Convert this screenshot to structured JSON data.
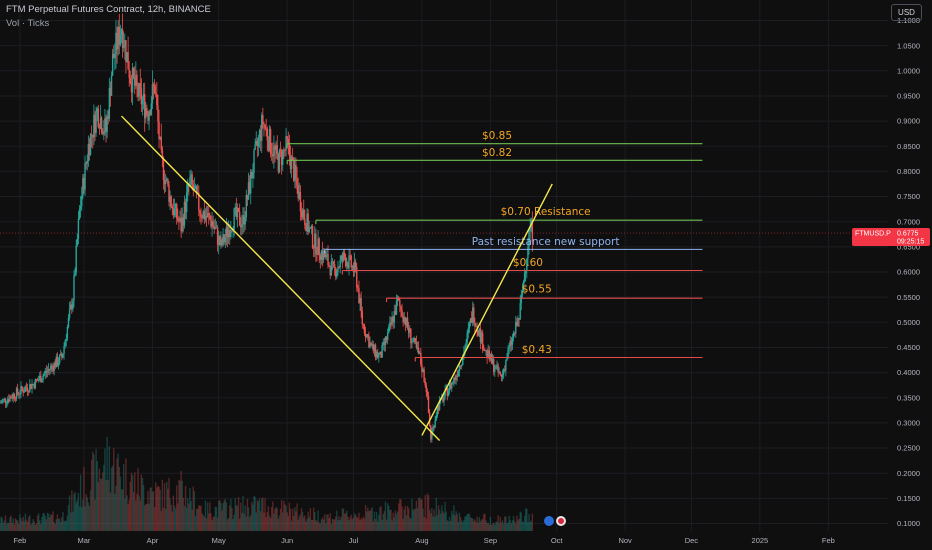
{
  "header": {
    "title": "FTM Perpetual Futures Contract, 12h, BINANCE",
    "indicator": "Vol · Ticks",
    "currency_button": "USD"
  },
  "price_tag": {
    "symbol": "FTMUSD.P",
    "price": "0.6775",
    "countdown": "09:25:15"
  },
  "colors": {
    "background": "#0f0f10",
    "candle_up": "#26a69a",
    "candle_down": "#ef5350",
    "trendline": "#f5e94b",
    "support_green": "#6fbf4f",
    "resistance_red": "#e54b4b",
    "support_blue": "#8fb4f0",
    "label_orange": "#f5a623",
    "price_tag": "#f23645"
  },
  "chart_data": {
    "type": "candlestick",
    "symbol": "FTMUSD.P",
    "interval": "12h",
    "exchange": "BINANCE",
    "y_ticks": [
      0.1,
      0.15,
      0.2,
      0.25,
      0.3,
      0.35,
      0.4,
      0.45,
      0.5,
      0.55,
      0.6,
      0.65,
      0.7,
      0.75,
      0.8,
      0.85,
      0.9,
      0.95,
      1.0,
      1.05,
      1.1
    ],
    "y_tick_labels": [
      "0.1000",
      "0.1500",
      "0.2000",
      "0.2500",
      "0.3000",
      "0.3500",
      "0.4000",
      "0.4500",
      "0.5000",
      "0.5500",
      "0.6000",
      "0.6500",
      "0.7000",
      "0.7500",
      "0.8000",
      "0.8500",
      "0.9000",
      "0.9500",
      "1.0000",
      "1.0500",
      "1.1000"
    ],
    "ylim": [
      0.09,
      1.13
    ],
    "x_ticks": [
      {
        "label": "Feb",
        "date": "2024-02-01"
      },
      {
        "label": "Mar",
        "date": "2024-03-01"
      },
      {
        "label": "Apr",
        "date": "2024-04-01"
      },
      {
        "label": "May",
        "date": "2024-05-01"
      },
      {
        "label": "Jun",
        "date": "2024-06-01"
      },
      {
        "label": "Jul",
        "date": "2024-07-01"
      },
      {
        "label": "Aug",
        "date": "2024-08-01"
      },
      {
        "label": "Sep",
        "date": "2024-09-01"
      },
      {
        "label": "Oct",
        "date": "2024-10-01"
      },
      {
        "label": "Nov",
        "date": "2024-11-01"
      },
      {
        "label": "Dec",
        "date": "2024-12-01"
      },
      {
        "label": "2025",
        "date": "2025-01-01"
      },
      {
        "label": "Feb",
        "date": "2025-02-01"
      }
    ],
    "xlim": [
      "2024-01-23",
      "2025-02-28"
    ],
    "price_path": [
      [
        "2024-01-23",
        0.34
      ],
      [
        "2024-01-31",
        0.36
      ],
      [
        "2024-02-08",
        0.38
      ],
      [
        "2024-02-15",
        0.41
      ],
      [
        "2024-02-20",
        0.43
      ],
      [
        "2024-02-25",
        0.55
      ],
      [
        "2024-02-28",
        0.72
      ],
      [
        "2024-03-03",
        0.85
      ],
      [
        "2024-03-07",
        0.92
      ],
      [
        "2024-03-11",
        0.88
      ],
      [
        "2024-03-14",
        1.02
      ],
      [
        "2024-03-18",
        1.09
      ],
      [
        "2024-03-22",
        0.99
      ],
      [
        "2024-03-26",
        0.95
      ],
      [
        "2024-03-30",
        0.92
      ],
      [
        "2024-04-02",
        0.97
      ],
      [
        "2024-04-05",
        0.82
      ],
      [
        "2024-04-10",
        0.73
      ],
      [
        "2024-04-14",
        0.69
      ],
      [
        "2024-04-18",
        0.78
      ],
      [
        "2024-04-23",
        0.72
      ],
      [
        "2024-04-28",
        0.7
      ],
      [
        "2024-05-02",
        0.65
      ],
      [
        "2024-05-08",
        0.71
      ],
      [
        "2024-05-12",
        0.7
      ],
      [
        "2024-05-17",
        0.82
      ],
      [
        "2024-05-21",
        0.9
      ],
      [
        "2024-05-24",
        0.86
      ],
      [
        "2024-05-28",
        0.82
      ],
      [
        "2024-06-01",
        0.85
      ],
      [
        "2024-06-04",
        0.8
      ],
      [
        "2024-06-08",
        0.72
      ],
      [
        "2024-06-13",
        0.66
      ],
      [
        "2024-06-18",
        0.63
      ],
      [
        "2024-06-22",
        0.6
      ],
      [
        "2024-06-27",
        0.63
      ],
      [
        "2024-07-02",
        0.6
      ],
      [
        "2024-07-05",
        0.5
      ],
      [
        "2024-07-09",
        0.45
      ],
      [
        "2024-07-13",
        0.43
      ],
      [
        "2024-07-17",
        0.48
      ],
      [
        "2024-07-21",
        0.54
      ],
      [
        "2024-07-24",
        0.51
      ],
      [
        "2024-07-27",
        0.47
      ],
      [
        "2024-07-31",
        0.43
      ],
      [
        "2024-08-03",
        0.37
      ],
      [
        "2024-08-05",
        0.27
      ],
      [
        "2024-08-08",
        0.33
      ],
      [
        "2024-08-12",
        0.36
      ],
      [
        "2024-08-16",
        0.39
      ],
      [
        "2024-08-20",
        0.44
      ],
      [
        "2024-08-24",
        0.52
      ],
      [
        "2024-08-27",
        0.48
      ],
      [
        "2024-08-30",
        0.44
      ],
      [
        "2024-09-03",
        0.41
      ],
      [
        "2024-09-06",
        0.39
      ],
      [
        "2024-09-09",
        0.44
      ],
      [
        "2024-09-12",
        0.48
      ],
      [
        "2024-09-14",
        0.51
      ],
      [
        "2024-09-16",
        0.58
      ],
      [
        "2024-09-18",
        0.66
      ],
      [
        "2024-09-19",
        0.69
      ],
      [
        "2024-09-20",
        0.6775
      ]
    ],
    "volume": {
      "ylim_relative_peak": 1,
      "profile": [
        [
          "2024-01-23",
          0.12
        ],
        [
          "2024-02-20",
          0.16
        ],
        [
          "2024-02-28",
          0.45
        ],
        [
          "2024-03-05",
          0.62
        ],
        [
          "2024-03-12",
          0.82
        ],
        [
          "2024-03-18",
          0.66
        ],
        [
          "2024-03-25",
          0.52
        ],
        [
          "2024-04-05",
          0.42
        ],
        [
          "2024-04-14",
          0.48
        ],
        [
          "2024-04-25",
          0.24
        ],
        [
          "2024-05-20",
          0.3
        ],
        [
          "2024-06-05",
          0.22
        ],
        [
          "2024-06-20",
          0.16
        ],
        [
          "2024-07-05",
          0.2
        ],
        [
          "2024-08-05",
          0.3
        ],
        [
          "2024-08-20",
          0.16
        ],
        [
          "2024-09-10",
          0.12
        ],
        [
          "2024-09-20",
          0.2
        ]
      ]
    },
    "trendlines": [
      {
        "from": [
          "2024-03-18",
          0.91
        ],
        "to": [
          "2024-08-09",
          0.265
        ]
      },
      {
        "from": [
          "2024-08-01",
          0.275
        ],
        "to": [
          "2024-09-29",
          0.775
        ]
      }
    ],
    "levels": [
      {
        "price": 0.855,
        "from": "2024-06-01",
        "to": "2024-12-06",
        "role": "resistance-green",
        "label": "$0.85",
        "label_price": 0.87,
        "label_date": "2024-09-04"
      },
      {
        "price": 0.822,
        "from": "2024-06-01",
        "to": "2024-12-06",
        "role": "resistance-green",
        "label": "$0.82",
        "label_price": 0.837,
        "label_date": "2024-09-04"
      },
      {
        "price": 0.703,
        "from": "2024-06-14",
        "to": "2024-12-06",
        "role": "resistance-green",
        "label": "$0.70 Resistance",
        "label_price": 0.719,
        "label_date": "2024-09-26"
      },
      {
        "price": 0.645,
        "from": "2024-06-18",
        "to": "2024-12-06",
        "role": "support-blue",
        "label": "Past resistance new support",
        "label_price": 0.66,
        "label_date": "2024-09-26"
      },
      {
        "price": 0.603,
        "from": "2024-06-26",
        "to": "2024-12-06",
        "role": "resistance-red",
        "label": "$0.60",
        "label_price": 0.618,
        "label_date": "2024-09-18"
      },
      {
        "price": 0.548,
        "from": "2024-07-16",
        "to": "2024-12-06",
        "role": "resistance-red",
        "label": "$0.55",
        "label_price": 0.565,
        "label_date": "2024-09-22"
      },
      {
        "price": 0.43,
        "from": "2024-07-29",
        "to": "2024-12-06",
        "role": "resistance-red",
        "label": "$0.43",
        "label_price": 0.445,
        "label_date": "2024-09-22"
      }
    ],
    "current_price": 0.6775,
    "grid": true
  }
}
